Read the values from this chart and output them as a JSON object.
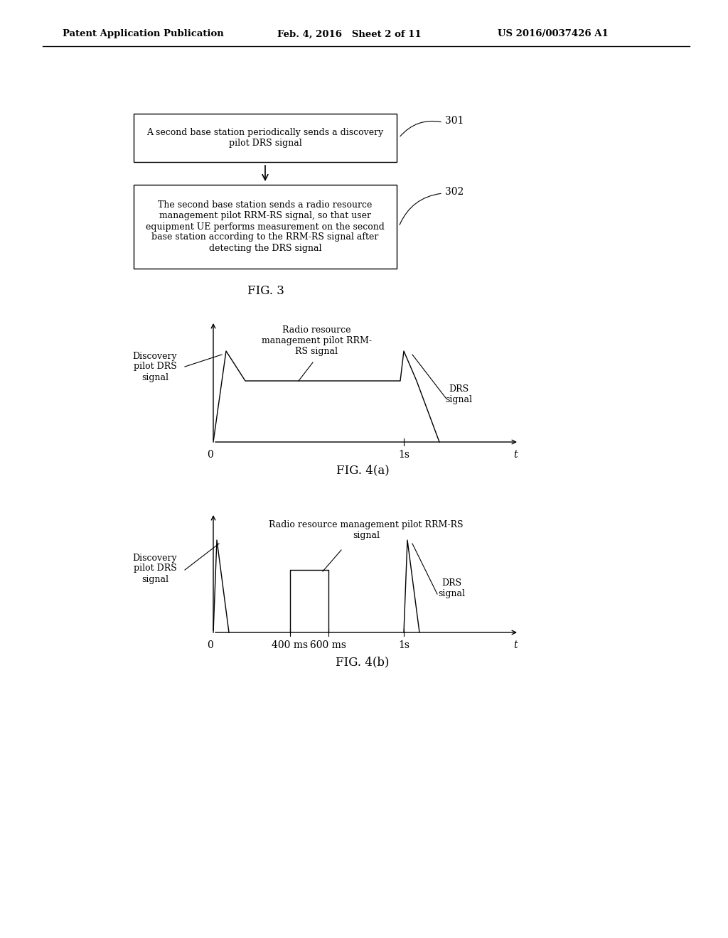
{
  "bg_color": "#ffffff",
  "header_left": "Patent Application Publication",
  "header_mid": "Feb. 4, 2016   Sheet 2 of 11",
  "header_right": "US 2016/0037426 A1",
  "box1_text": "A second base station periodically sends a discovery\npilot DRS signal",
  "box1_label": "301",
  "box2_text": "The second base station sends a radio resource\nmanagement pilot RRM-RS signal, so that user\nequipment UE performs measurement on the second\nbase station according to the RRM-RS signal after\ndetecting the DRS signal",
  "box2_label": "302",
  "fig3_label": "FIG. 3",
  "fig4a_label": "FIG. 4(a)",
  "fig4b_label": "FIG. 4(b)",
  "fig4a_rrm_label": "Radio resource\nmanagement pilot RRM-\nRS signal",
  "fig4a_drs_left_label": "Discovery\npilot DRS\nsignal",
  "fig4a_drs_right_label": "DRS\nsignal",
  "fig4b_rrm_label": "Radio resource management pilot RRM-RS\nsignal",
  "fig4b_drs_left_label": "Discovery\npilot DRS\nsignal",
  "fig4b_drs_right_label": "DRS\nsignal"
}
